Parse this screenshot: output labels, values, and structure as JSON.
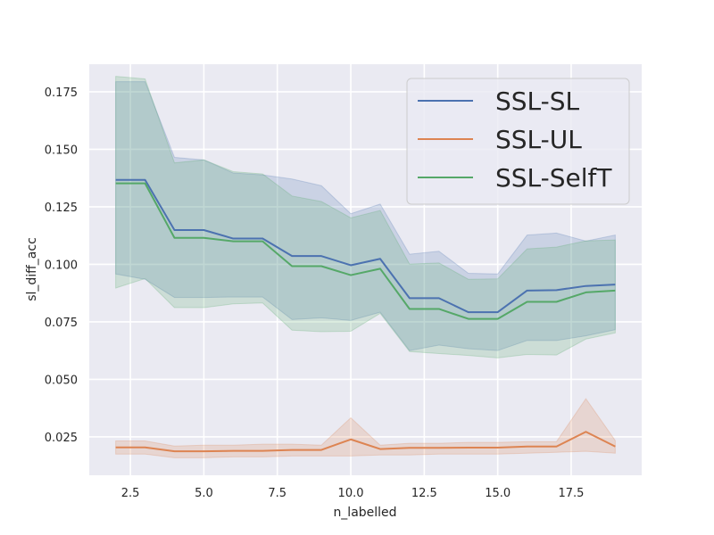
{
  "chart_data": {
    "type": "line",
    "title": "",
    "xlabel": "n_labelled",
    "ylabel": "sl_diff_acc",
    "xlim": [
      1.1,
      19.9
    ],
    "ylim": [
      0.0083,
      0.187
    ],
    "xticks": [
      2.5,
      5.0,
      7.5,
      10.0,
      12.5,
      15.0,
      17.5
    ],
    "xtick_labels": [
      "2.5",
      "5.0",
      "7.5",
      "10.0",
      "12.5",
      "15.0",
      "17.5"
    ],
    "yticks": [
      0.025,
      0.05,
      0.075,
      0.1,
      0.125,
      0.15,
      0.175
    ],
    "ytick_labels": [
      "0.025",
      "0.050",
      "0.075",
      "0.100",
      "0.125",
      "0.150",
      "0.175"
    ],
    "grid": true,
    "legend_position": "top-right",
    "x": [
      2,
      3,
      4,
      5,
      6,
      7,
      8,
      9,
      10,
      11,
      12,
      13,
      14,
      15,
      16,
      17,
      18,
      19
    ],
    "series": [
      {
        "name": "SSL-SL",
        "color": "#4c72b0",
        "values": [
          0.1367,
          0.1367,
          0.1149,
          0.1149,
          0.1112,
          0.1112,
          0.1036,
          0.1036,
          0.0996,
          0.1024,
          0.0853,
          0.0853,
          0.0792,
          0.0792,
          0.0886,
          0.0888,
          0.0906,
          0.0912
        ],
        "ci_upper": [
          0.1794,
          0.1794,
          0.1465,
          0.1454,
          0.1397,
          0.1389,
          0.1371,
          0.1342,
          0.122,
          0.1262,
          0.1044,
          0.1057,
          0.0961,
          0.0958,
          0.1127,
          0.1136,
          0.1101,
          0.1127
        ],
        "ci_lower": [
          0.0958,
          0.0935,
          0.0856,
          0.0856,
          0.0858,
          0.0858,
          0.076,
          0.0767,
          0.0756,
          0.0792,
          0.0625,
          0.0649,
          0.0633,
          0.0625,
          0.0669,
          0.0669,
          0.0689,
          0.0716
        ]
      },
      {
        "name": "SSL-UL",
        "color": "#dd8452",
        "values": [
          0.0204,
          0.0204,
          0.0187,
          0.0187,
          0.0189,
          0.0189,
          0.0193,
          0.0193,
          0.0239,
          0.0197,
          0.0202,
          0.0202,
          0.0203,
          0.0203,
          0.0208,
          0.0208,
          0.0272,
          0.0208
        ],
        "ci_upper": [
          0.0232,
          0.0232,
          0.021,
          0.0214,
          0.0214,
          0.0218,
          0.0218,
          0.0214,
          0.0333,
          0.0214,
          0.0222,
          0.0222,
          0.0226,
          0.0226,
          0.0229,
          0.0229,
          0.0416,
          0.0234
        ],
        "ci_lower": [
          0.0175,
          0.0175,
          0.0159,
          0.0159,
          0.0163,
          0.0163,
          0.0167,
          0.0167,
          0.0167,
          0.0171,
          0.0171,
          0.0175,
          0.0175,
          0.0175,
          0.0179,
          0.0183,
          0.0187,
          0.0179
        ]
      },
      {
        "name": "SSL-SelfT",
        "color": "#55a868",
        "values": [
          0.1352,
          0.1352,
          0.1115,
          0.1115,
          0.11,
          0.11,
          0.0992,
          0.0992,
          0.0953,
          0.0981,
          0.0806,
          0.0806,
          0.0763,
          0.0763,
          0.0837,
          0.0837,
          0.0878,
          0.0886
        ],
        "ci_upper": [
          0.1817,
          0.1806,
          0.1441,
          0.1454,
          0.1403,
          0.1393,
          0.1297,
          0.1273,
          0.1202,
          0.1234,
          0.1001,
          0.1006,
          0.0935,
          0.0937,
          0.1067,
          0.1075,
          0.1102,
          0.1106
        ],
        "ci_lower": [
          0.0897,
          0.0938,
          0.0812,
          0.0812,
          0.0828,
          0.0832,
          0.0714,
          0.0707,
          0.0709,
          0.0787,
          0.0621,
          0.0612,
          0.0604,
          0.0593,
          0.0608,
          0.0606,
          0.0675,
          0.0702
        ]
      }
    ]
  }
}
